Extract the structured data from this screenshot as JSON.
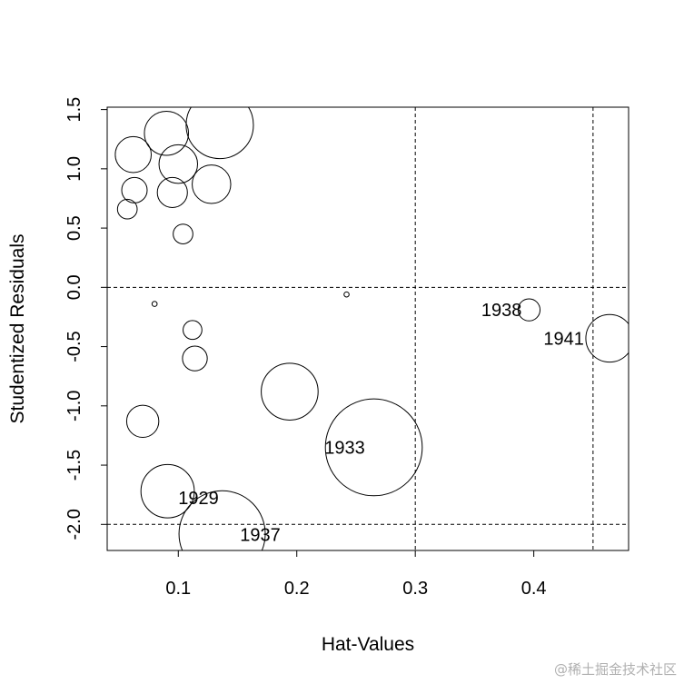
{
  "chart_data": {
    "type": "scatter",
    "variant": "bubble",
    "title": "",
    "xlabel": "Hat-Values",
    "ylabel": "Studentized Residuals",
    "xlim": [
      0.04,
      0.48
    ],
    "ylim": [
      -2.22,
      1.52
    ],
    "x_ticks": [
      0.1,
      0.2,
      0.3,
      0.4
    ],
    "y_ticks": [
      -2.0,
      -1.5,
      -1.0,
      -0.5,
      0.0,
      0.5,
      1.0,
      1.5
    ],
    "x_tick_labels": [
      "0.1",
      "0.2",
      "0.3",
      "0.4"
    ],
    "y_tick_labels": [
      "-2.0",
      "-1.5",
      "-1.0",
      "-0.5",
      "0.0",
      "0.5",
      "1.0",
      "1.5"
    ],
    "reference_lines": {
      "vertical": [
        0.3,
        0.45
      ],
      "horizontal": [
        0.0,
        -2.0
      ],
      "style": "dashed"
    },
    "bubble_size_meaning": "Cook's distance",
    "points": [
      {
        "x": 0.135,
        "y": 1.37,
        "size": 0.07,
        "label": ""
      },
      {
        "x": 0.09,
        "y": 1.3,
        "size": 0.03,
        "label": ""
      },
      {
        "x": 0.062,
        "y": 1.12,
        "size": 0.02,
        "label": ""
      },
      {
        "x": 0.1,
        "y": 1.04,
        "size": 0.023,
        "label": ""
      },
      {
        "x": 0.128,
        "y": 0.87,
        "size": 0.023,
        "label": ""
      },
      {
        "x": 0.063,
        "y": 0.82,
        "size": 0.01,
        "label": ""
      },
      {
        "x": 0.095,
        "y": 0.8,
        "size": 0.014,
        "label": ""
      },
      {
        "x": 0.057,
        "y": 0.66,
        "size": 0.006,
        "label": ""
      },
      {
        "x": 0.104,
        "y": 0.45,
        "size": 0.006,
        "label": ""
      },
      {
        "x": 0.08,
        "y": -0.14,
        "size": 0.0004,
        "label": ""
      },
      {
        "x": 0.242,
        "y": -0.06,
        "size": 0.0004,
        "label": ""
      },
      {
        "x": 0.112,
        "y": -0.36,
        "size": 0.0055,
        "label": ""
      },
      {
        "x": 0.114,
        "y": -0.6,
        "size": 0.0095,
        "label": ""
      },
      {
        "x": 0.07,
        "y": -1.13,
        "size": 0.016,
        "label": ""
      },
      {
        "x": 0.194,
        "y": -0.88,
        "size": 0.05,
        "label": ""
      },
      {
        "x": 0.265,
        "y": -1.35,
        "size": 0.145,
        "label": "1933"
      },
      {
        "x": 0.091,
        "y": -1.72,
        "size": 0.044,
        "label": "1929"
      },
      {
        "x": 0.137,
        "y": -2.08,
        "size": 0.115,
        "label": "1937"
      },
      {
        "x": 0.396,
        "y": -0.19,
        "size": 0.0075,
        "label": "1938"
      },
      {
        "x": 0.464,
        "y": -0.43,
        "size": 0.035,
        "label": "1941"
      }
    ]
  },
  "watermark": "@稀土掘金技术社区"
}
